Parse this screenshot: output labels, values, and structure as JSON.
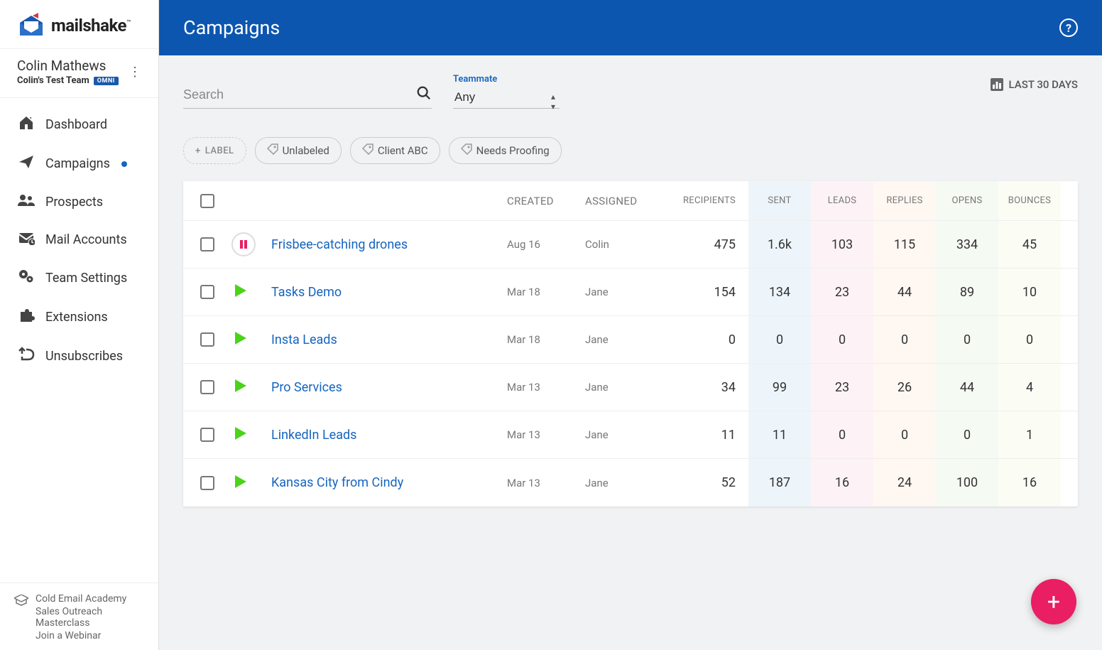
{
  "brand": {
    "name": "mailshake"
  },
  "user": {
    "name": "Colin Mathews",
    "team": "Colin's Test Team",
    "badge": "OMNI"
  },
  "nav": [
    {
      "label": "Dashboard",
      "icon": "home"
    },
    {
      "label": "Campaigns",
      "icon": "send",
      "active": true
    },
    {
      "label": "Prospects",
      "icon": "users"
    },
    {
      "label": "Mail Accounts",
      "icon": "mail"
    },
    {
      "label": "Team Settings",
      "icon": "gears"
    },
    {
      "label": "Extensions",
      "icon": "puzzle"
    },
    {
      "label": "Unsubscribes",
      "icon": "unsub"
    }
  ],
  "footer": [
    "Cold Email Academy",
    "Sales Outreach Masterclass",
    "Join a Webinar"
  ],
  "page": {
    "title": "Campaigns"
  },
  "search": {
    "placeholder": "Search"
  },
  "teammate": {
    "label": "Teammate",
    "value": "Any"
  },
  "dateRange": "LAST 30 DAYS",
  "labels": {
    "add": "LABEL",
    "chips": [
      "Unlabeled",
      "Client ABC",
      "Needs Proofing"
    ]
  },
  "columns": {
    "created": "CREATED",
    "assigned": "ASSIGNED",
    "recipients": "RECIPIENTS",
    "sent": "SENT",
    "leads": "LEADS",
    "replies": "REPLIES",
    "opens": "OPENS",
    "bounces": "BOUNCES"
  },
  "rows": [
    {
      "status": "paused",
      "name": "Frisbee-catching drones",
      "created": "Aug 16",
      "assigned": "Colin",
      "recipients": "475",
      "sent": "1.6k",
      "leads": "103",
      "replies": "115",
      "opens": "334",
      "bounces": "45"
    },
    {
      "status": "play",
      "name": "Tasks Demo",
      "created": "Mar 18",
      "assigned": "Jane",
      "recipients": "154",
      "sent": "134",
      "leads": "23",
      "replies": "44",
      "opens": "89",
      "bounces": "10"
    },
    {
      "status": "play",
      "name": "Insta Leads",
      "created": "Mar 18",
      "assigned": "Jane",
      "recipients": "0",
      "sent": "0",
      "leads": "0",
      "replies": "0",
      "opens": "0",
      "bounces": "0"
    },
    {
      "status": "play",
      "name": "Pro Services",
      "created": "Mar 13",
      "assigned": "Jane",
      "recipients": "34",
      "sent": "99",
      "leads": "23",
      "replies": "26",
      "opens": "44",
      "bounces": "4"
    },
    {
      "status": "play",
      "name": "LinkedIn Leads",
      "created": "Mar 13",
      "assigned": "Jane",
      "recipients": "11",
      "sent": "11",
      "leads": "0",
      "replies": "0",
      "opens": "0",
      "bounces": "1"
    },
    {
      "status": "play",
      "name": "Kansas City from Cindy",
      "created": "Mar 13",
      "assigned": "Jane",
      "recipients": "52",
      "sent": "187",
      "leads": "16",
      "replies": "24",
      "opens": "100",
      "bounces": "16"
    }
  ],
  "colors": {
    "brand": "#0c56b0",
    "link": "#1565c0",
    "play": "#4bd31a",
    "pause": "#e91e63",
    "sent_bg": "#eef5fa",
    "leads_bg": "#fdf3f7",
    "replies_bg": "#fef7f2",
    "opens_bg": "#f5faf2",
    "bounces_bg": "#fbfdf5"
  }
}
